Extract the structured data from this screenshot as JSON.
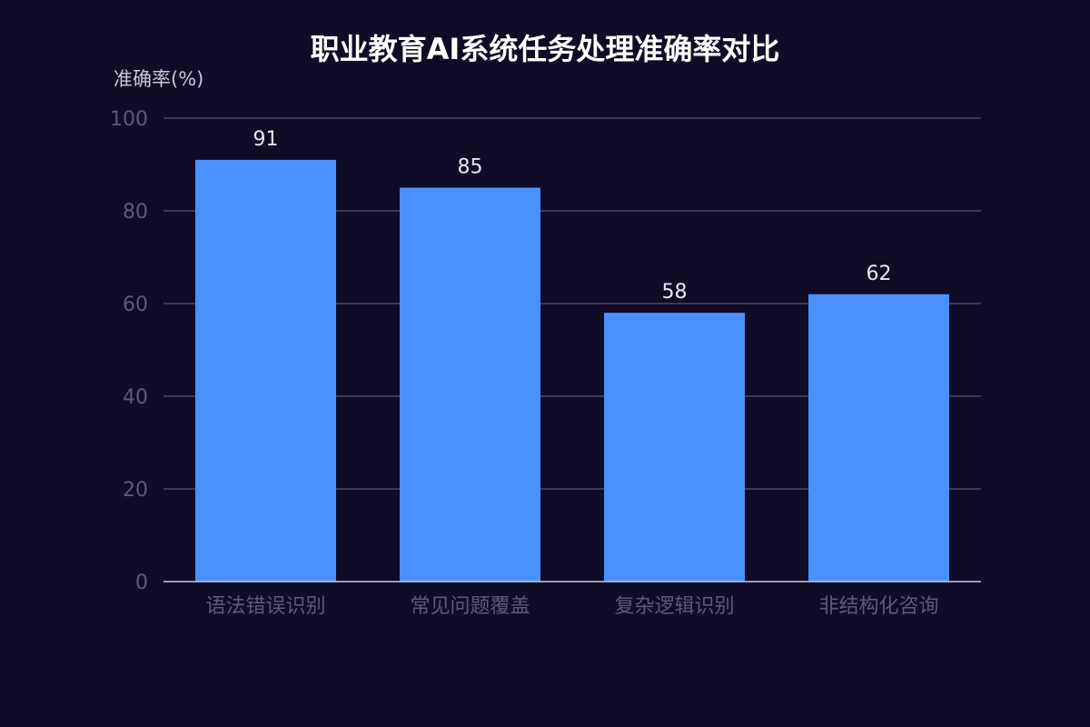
{
  "chart_data": {
    "type": "bar",
    "title": "职业教育AI系统任务处理准确率对比",
    "xlabel": "",
    "ylabel": "准确率(%)",
    "categories": [
      "语法错误识别",
      "常见问题覆盖",
      "复杂逻辑识别",
      "非结构化咨询"
    ],
    "values": [
      91,
      85,
      58,
      62
    ],
    "ylim": [
      0,
      100
    ],
    "yticks": [
      0,
      20,
      40,
      60,
      80,
      100
    ],
    "grid": true,
    "legend": "none",
    "colors": {
      "background": "#100c28",
      "bar": "#4a90ff",
      "grid": "#4a4860",
      "axis": "#c8c8d8",
      "title": "#ffffff",
      "tick": "#5c5a73",
      "data_label": "#e6e6ee",
      "ylabel": "#c7c6d3"
    }
  }
}
